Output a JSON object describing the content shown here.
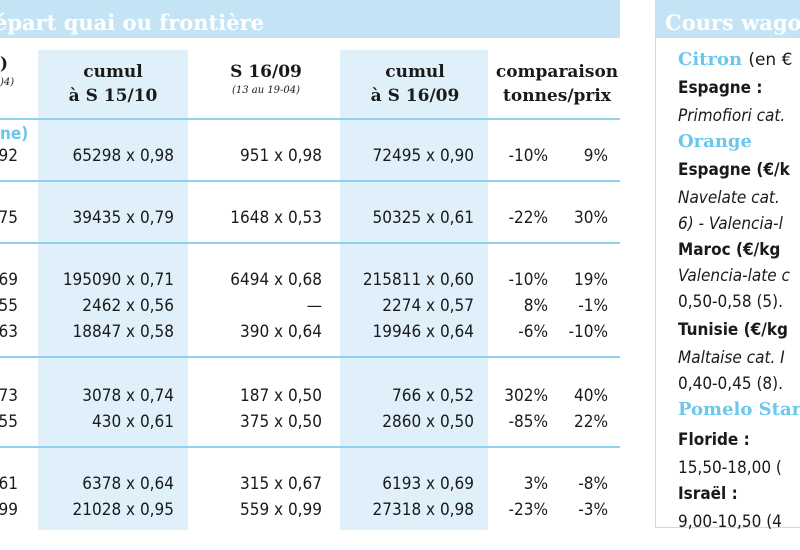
{
  "header": {
    "left_title": "épart quai ou frontière",
    "right_title": "Cours wagon"
  },
  "columns": [
    {
      "title": ")",
      "sub": ")4)"
    },
    {
      "title": "cumul à S 15/10",
      "line1": "cumul",
      "line2": "à S 15/10"
    },
    {
      "title": "S 16/09",
      "line1": "S 16/09",
      "sub": "(13 au 19-04)"
    },
    {
      "title": "cumul à S 16/09",
      "line1": "cumul",
      "line2": "à S 16/09"
    },
    {
      "title": "comparaison tonnes/prix",
      "line1": "comparaison",
      "line2": "tonnes/prix"
    }
  ],
  "section_label": "ne)",
  "rows": [
    {
      "c0": "92",
      "c1": "65298 x 0,98",
      "c2": "951 x 0,98",
      "c3": "72495 x 0,90",
      "t": "-10%",
      "p": "9%"
    },
    {
      "c0": "75",
      "c1": "39435 x 0,79",
      "c2": "1648 x 0,53",
      "c3": "50325 x 0,61",
      "t": "-22%",
      "p": "30%"
    },
    {
      "c0": "69",
      "c1": "195090 x 0,71",
      "c2": "6494 x 0,68",
      "c3": "215811 x 0,60",
      "t": "-10%",
      "p": "19%"
    },
    {
      "c0": "55",
      "c1": "2462 x 0,56",
      "c2": "—",
      "c3": "2274 x 0,57",
      "t": "8%",
      "p": "-1%"
    },
    {
      "c0": "63",
      "c1": "18847 x 0,58",
      "c2": "390 x 0,64",
      "c3": "19946 x 0,64",
      "t": "-6%",
      "p": "-10%"
    },
    {
      "c0": "73",
      "c1": "3078 x 0,74",
      "c2": "187 x 0,50",
      "c3": "766 x 0,52",
      "t": "302%",
      "p": "40%"
    },
    {
      "c0": "55",
      "c1": "430 x 0,61",
      "c2": "375 x 0,50",
      "c3": "2860 x 0,50",
      "t": "-85%",
      "p": "22%"
    },
    {
      "c0": "61",
      "c1": "6378 x 0,64",
      "c2": "315 x 0,67",
      "c3": "6193 x 0,69",
      "t": "3%",
      "p": "-8%"
    },
    {
      "c0": "99",
      "c1": "21028 x 0,95",
      "c2": "559 x 0,99",
      "c3": "27318 x 0,98",
      "t": "-23%",
      "p": "-3%"
    }
  ],
  "sidebar": {
    "citron_label": "Citron",
    "citron_unit": "(en €",
    "espagne1": "Espagne :",
    "primofiori": "Primofiori cat.",
    "orange_label": "Orange",
    "espagne2": "Espagne (€/k",
    "navelate": "Navelate cat.",
    "valencia_line": "6) - Valencia-l",
    "maroc": "Maroc (€/kg",
    "valencia_late": "Valencia-late c",
    "maroc_price": "0,50-0,58 (5).",
    "tunisie": "Tunisie (€/kg",
    "maltaise": "Maltaise cat. I",
    "tunisie_price": "0,40-0,45 (8).",
    "pomelo": "Pomelo Star",
    "floride": "Floride :",
    "floride_price": "15,50-18,00 (",
    "israel": "Israël :",
    "israel_price": "9,00-10,50 (4"
  }
}
